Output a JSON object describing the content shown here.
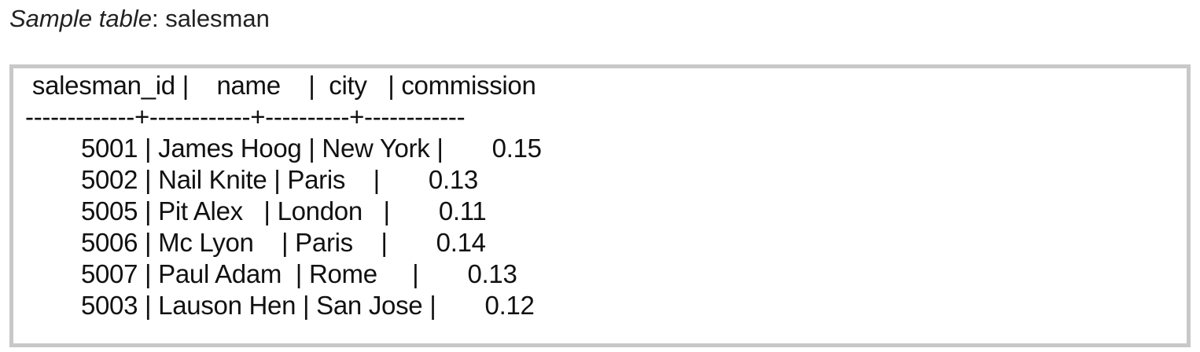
{
  "caption": {
    "label": "Sample table",
    "separator": ": ",
    "table_name": "salesman"
  },
  "table": {
    "header_line": " salesman_id |    name    |  city   | commission",
    "divider_line": "-------------+------------+----------+------------",
    "rows": [
      "        5001 | James Hoog | New York |       0.15",
      "        5002 | Nail Knite | Paris    |       0.13",
      "        5005 | Pit Alex   | London   |       0.11",
      "        5006 | Mc Lyon    | Paris    |       0.14",
      "        5007 | Paul Adam  | Rome     |       0.13",
      "        5003 | Lauson Hen | San Jose |       0.12"
    ]
  }
}
